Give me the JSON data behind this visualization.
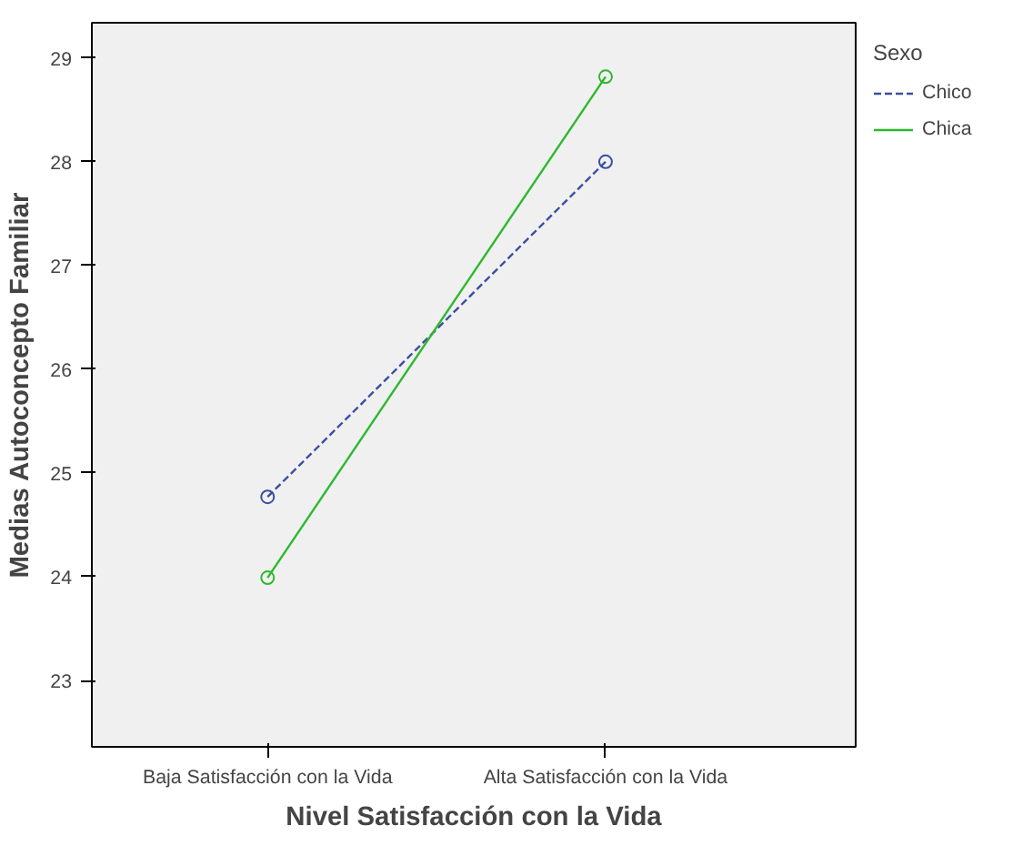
{
  "chart_data": {
    "type": "line",
    "xlabel": "Nivel Satisfacción con la Vida",
    "ylabel": "Medias Autoconcepto Familiar",
    "legend_title": "Sexo",
    "categories": [
      "Baja Satisfacción con la Vida",
      "Alta Satisfacción con la Vida"
    ],
    "series": [
      {
        "name": "Chico",
        "color": "#3c4ea0",
        "values": [
          24.77,
          28.0
        ],
        "line_style": "dashed"
      },
      {
        "name": "Chica",
        "color": "#2db82d",
        "values": [
          23.99,
          28.82
        ],
        "line_style": "solid"
      }
    ],
    "ylim": [
      22.36,
      29.34
    ],
    "yticks": [
      23,
      24,
      25,
      26,
      27,
      28,
      29
    ],
    "grid": false,
    "legend": "top right",
    "marker": "circle"
  }
}
